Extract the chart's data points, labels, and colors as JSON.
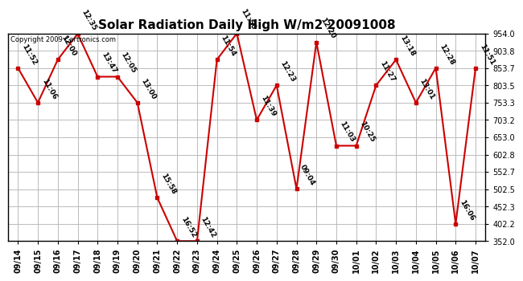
{
  "title": "Solar Radiation Daily High W/m2 20091008",
  "copyright": "Copyright 2009 Cartronics.com",
  "dates": [
    "09/14",
    "09/15",
    "09/16",
    "09/17",
    "09/18",
    "09/19",
    "09/20",
    "09/21",
    "09/22",
    "09/23",
    "09/24",
    "09/25",
    "09/26",
    "09/27",
    "09/28",
    "09/29",
    "09/30",
    "10/01",
    "10/02",
    "10/03",
    "10/04",
    "10/05",
    "10/06",
    "10/07"
  ],
  "values": [
    853.7,
    753.3,
    878.0,
    953.0,
    828.5,
    828.5,
    753.3,
    478.0,
    352.0,
    352.0,
    878.0,
    954.0,
    703.2,
    803.5,
    503.5,
    928.5,
    628.5,
    628.5,
    803.5,
    878.0,
    753.3,
    853.7,
    402.2,
    853.7
  ],
  "labels": [
    "11:52",
    "11:06",
    "12:00",
    "12:35",
    "13:47",
    "12:05",
    "13:00",
    "15:58",
    "16:52",
    "12:42",
    "11:54",
    "11:50",
    "11:39",
    "12:23",
    "09:04",
    "12:20",
    "11:03",
    "10:25",
    "11:27",
    "13:18",
    "13:01",
    "12:28",
    "16:06",
    "11:51"
  ],
  "ytick_values": [
    352.0,
    402.2,
    452.3,
    502.5,
    552.7,
    602.8,
    653.0,
    703.2,
    753.3,
    803.5,
    853.7,
    903.8,
    954.0
  ],
  "line_color": "#cc0000",
  "marker_color": "#cc0000",
  "bg_color": "#ffffff",
  "grid_color": "#bbbbbb",
  "title_fontsize": 11,
  "label_fontsize": 6.5,
  "copyright_fontsize": 6,
  "xtick_fontsize": 7,
  "ytick_fontsize": 7
}
